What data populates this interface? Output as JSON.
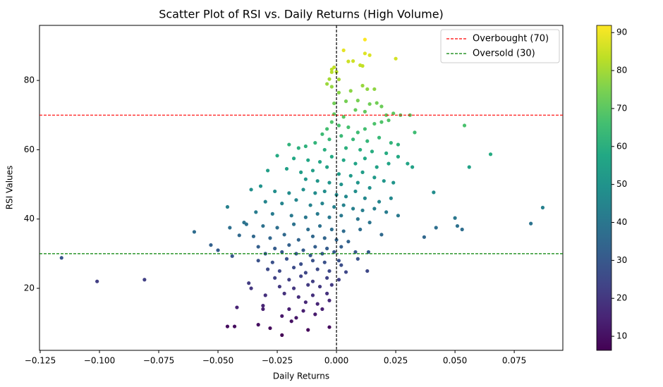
{
  "chart_data": {
    "type": "scatter",
    "title": "Scatter Plot of RSI vs. Daily Returns (High Volume)",
    "x_label": "Daily Returns",
    "y_label": "RSI Values",
    "colormap": "viridis",
    "xlim": [
      -0.1253,
      0.0955
    ],
    "ylim": [
      2.1,
      95.9
    ],
    "xticks": [
      {
        "value": -0.125,
        "label": "−0.125"
      },
      {
        "value": -0.1,
        "label": "−0.100"
      },
      {
        "value": -0.075,
        "label": "−0.075"
      },
      {
        "value": -0.05,
        "label": "−0.050"
      },
      {
        "value": -0.025,
        "label": "−0.025"
      },
      {
        "value": 0,
        "label": "0.000"
      },
      {
        "value": 0.025,
        "label": "0.025"
      },
      {
        "value": 0.05,
        "label": "0.050"
      },
      {
        "value": 0.075,
        "label": "0.075"
      }
    ],
    "yticks": [
      20,
      40,
      60,
      80
    ],
    "colorbar": {
      "lim": [
        6.3,
        91.9
      ],
      "ticks": [
        10,
        20,
        30,
        40,
        50,
        60,
        70,
        80,
        90
      ]
    },
    "vline": {
      "value": 0,
      "color": "#000000"
    },
    "reference_lines": [
      {
        "name": "Overbought (70)",
        "value": 70,
        "color": "#ff0000"
      },
      {
        "name": "Oversold (30)",
        "value": 30,
        "color": "#008000"
      }
    ],
    "legend": "upper right",
    "x": [
      -0.116,
      -0.101,
      -0.081,
      -0.06,
      -0.053,
      -0.05,
      -0.046,
      -0.045,
      -0.044,
      -0.041,
      -0.039,
      -0.036,
      -0.042,
      -0.046,
      -0.043,
      -0.033,
      -0.028,
      -0.023,
      -0.012,
      -0.003,
      -0.031,
      -0.031,
      -0.037,
      -0.036,
      0.025,
      0.012,
      0.054,
      0.065,
      0.056,
      0.082,
      0.087,
      0.05,
      0.053,
      0.051,
      0.042,
      0.041,
      0.037,
      0.033,
      0.031,
      0.032,
      0.03,
      0.013,
      0.008,
      0.0135,
      0.009,
      0.004,
      0.002,
      0.003,
      0.012,
      0.014,
      0.007,
      0.005,
      0.01,
      0.011,
      -0.001,
      -0.002,
      -0.002,
      0.0,
      0.001,
      -0.003,
      -0.004,
      -0.002,
      0.011,
      0.013,
      0.016,
      0.006,
      0.001,
      0.004,
      0.009,
      0.014,
      0.017,
      0.019,
      -0.001,
      0.008,
      0.012,
      0.021,
      0.024,
      0.027,
      -0.001,
      0.003,
      -0.002,
      0.001,
      -0.004,
      0.005,
      0.009,
      0.012,
      0.016,
      0.019,
      0.022,
      -0.006,
      -0.003,
      0.002,
      0.007,
      0.013,
      0.018,
      0.023,
      0.026,
      -0.009,
      -0.013,
      -0.02,
      -0.016,
      -0.005,
      0.004,
      0.01,
      0.015,
      0.021,
      0.026,
      -0.025,
      -0.018,
      -0.012,
      -0.007,
      -0.002,
      0.003,
      0.008,
      0.012,
      0.017,
      0.022,
      -0.029,
      -0.021,
      -0.015,
      -0.01,
      -0.004,
      0.001,
      0.006,
      0.011,
      0.016,
      0.02,
      -0.013,
      -0.008,
      -0.003,
      0.002,
      0.009,
      0.014,
      0.024,
      -0.032,
      -0.026,
      -0.02,
      -0.014,
      -0.009,
      -0.005,
      0.0,
      0.004,
      0.008,
      0.012,
      0.018,
      0.023,
      -0.03,
      -0.023,
      -0.017,
      -0.011,
      -0.006,
      -0.001,
      0.003,
      0.007,
      0.011,
      0.016,
      0.021,
      0.026,
      -0.034,
      -0.027,
      -0.019,
      -0.013,
      -0.008,
      -0.003,
      0.002,
      0.009,
      0.014,
      -0.038,
      -0.031,
      -0.025,
      -0.018,
      -0.012,
      -0.007,
      -0.002,
      0.003,
      0.01,
      0.019,
      -0.035,
      -0.028,
      -0.022,
      -0.016,
      -0.01,
      -0.005,
      0.0,
      0.005,
      -0.033,
      -0.026,
      -0.02,
      -0.014,
      -0.009,
      -0.004,
      0.002,
      -0.03,
      -0.023,
      -0.017,
      -0.011,
      -0.006,
      -0.001,
      -0.033,
      -0.027,
      -0.021,
      -0.015,
      -0.01,
      -0.005,
      0.001,
      -0.029,
      -0.024,
      -0.018,
      -0.013,
      -0.008,
      -0.003,
      -0.026,
      -0.02,
      -0.015,
      -0.01,
      -0.004,
      0.001,
      -0.024,
      -0.018,
      -0.012,
      -0.007,
      -0.002,
      -0.03,
      -0.022,
      -0.016,
      -0.01,
      -0.004,
      -0.013,
      -0.008,
      -0.003,
      -0.02,
      -0.014,
      -0.006,
      -0.023,
      -0.017,
      -0.009,
      -0.019
    ],
    "y": [
      28.8,
      22,
      22.5,
      36.3,
      32.5,
      31,
      43.5,
      37.5,
      29.3,
      35.3,
      39,
      48.5,
      14.5,
      9,
      9,
      9.5,
      8.5,
      6.5,
      8,
      8.8,
      15,
      14,
      21.5,
      20,
      86.3,
      91.8,
      67,
      58.7,
      55,
      38.7,
      43.3,
      40.3,
      37,
      38,
      37.5,
      47.7,
      34.8,
      65,
      70,
      55,
      56,
      25,
      30.5,
      30.5,
      28.5,
      24.7,
      26.7,
      88.7,
      87.8,
      87.3,
      85.6,
      85.5,
      84.4,
      84.2,
      83.8,
      83.2,
      82.4,
      82.5,
      80.3,
      80.4,
      79,
      78.2,
      78.5,
      77.5,
      77.5,
      77,
      76.5,
      74,
      74.2,
      73.2,
      73.5,
      72.5,
      73.4,
      71.5,
      71,
      70,
      70.5,
      70,
      70.3,
      69.5,
      68,
      67,
      66,
      66.5,
      65,
      66,
      67.5,
      68,
      68.5,
      64.5,
      63,
      64,
      63,
      62.5,
      63.5,
      62,
      61.5,
      62,
      61,
      61.5,
      60.5,
      60,
      60.5,
      60,
      59.5,
      59,
      58,
      58.3,
      57.5,
      57,
      56.5,
      58,
      57,
      56,
      57.5,
      55,
      56,
      54,
      54.5,
      53.5,
      54,
      55,
      53,
      52.5,
      53.5,
      52,
      51,
      51.5,
      51,
      50.5,
      50,
      50.5,
      49,
      50.5,
      49.5,
      48,
      47.5,
      48.5,
      47.5,
      48,
      47,
      46.5,
      48,
      46,
      45,
      46,
      45,
      44.5,
      45.5,
      44,
      44.5,
      43.5,
      44,
      43,
      42.5,
      43,
      42,
      41,
      42,
      41.5,
      41,
      40.5,
      41.5,
      40.5,
      41,
      40,
      39,
      38.5,
      38,
      37.5,
      38.5,
      37,
      38,
      37,
      36.5,
      37,
      35.5,
      35,
      34.5,
      35.5,
      34,
      35,
      34.5,
      34,
      33.5,
      32,
      31.5,
      32.5,
      31,
      32,
      31.5,
      32,
      30,
      30.5,
      30,
      29.5,
      30,
      30.5,
      28,
      27.5,
      28.5,
      27,
      28,
      27.5,
      28,
      25.5,
      25,
      26,
      24.5,
      25.5,
      25,
      23,
      22.5,
      23.5,
      22,
      23,
      22.5,
      20.5,
      20,
      21,
      20.5,
      21,
      18,
      18.5,
      17.5,
      18,
      18.5,
      16,
      15.5,
      16.5,
      14,
      13.5,
      14,
      12,
      11.5,
      12.5,
      10.5
    ]
  }
}
